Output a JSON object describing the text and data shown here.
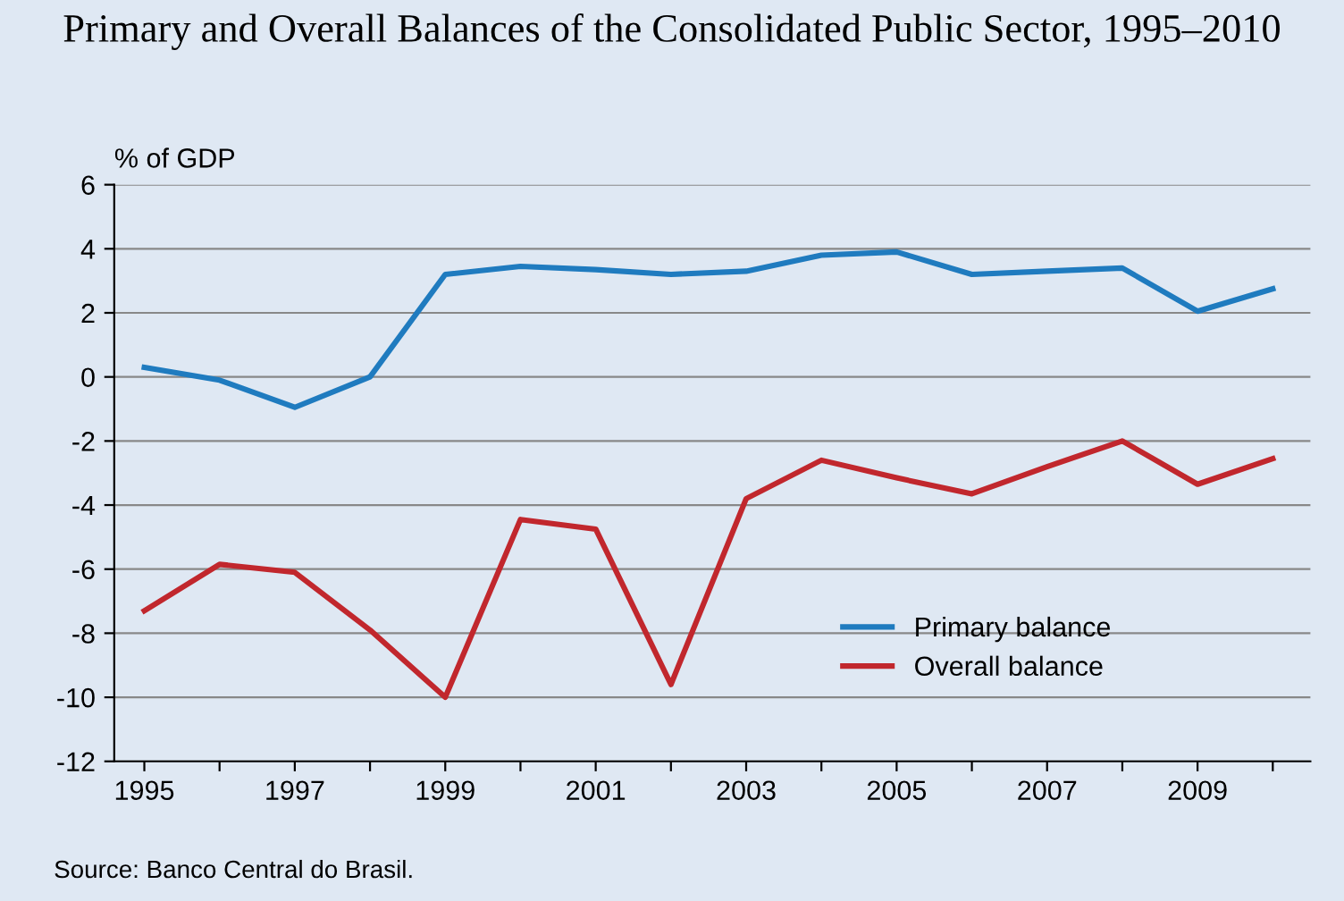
{
  "chart_data": {
    "type": "line",
    "title": "Primary and Overall Balances of the Consolidated Public Sector, 1995–2010",
    "ylabel": "% of GDP",
    "x": [
      1995,
      1996,
      1997,
      1998,
      1999,
      2000,
      2001,
      2002,
      2003,
      2004,
      2005,
      2006,
      2007,
      2008,
      2009,
      2010
    ],
    "series": [
      {
        "name": "Primary balance",
        "color": "#1f7bbf",
        "values": [
          0.3,
          -0.1,
          -0.95,
          0.0,
          3.2,
          3.45,
          3.35,
          3.2,
          3.3,
          3.8,
          3.9,
          3.2,
          3.3,
          3.4,
          2.05,
          2.75
        ]
      },
      {
        "name": "Overall balance",
        "color": "#c1272d",
        "values": [
          -7.3,
          -5.85,
          -6.1,
          -7.9,
          -10.0,
          -4.45,
          -4.75,
          -9.6,
          -3.8,
          -2.6,
          -3.15,
          -3.65,
          -2.8,
          -2.0,
          -3.35,
          -2.55
        ]
      }
    ],
    "xlim": [
      1994.6,
      2010.5
    ],
    "xticks": [
      1995,
      {
        "value": 1996,
        "label": null
      },
      1997,
      {
        "value": 1998,
        "label": null
      },
      1999,
      {
        "value": 2000,
        "label": null
      },
      2001,
      {
        "value": 2002,
        "label": null
      },
      2003,
      {
        "value": 2004,
        "label": null
      },
      2005,
      {
        "value": 2006,
        "label": null
      },
      2007,
      {
        "value": 2008,
        "label": null
      },
      2009,
      {
        "value": 2010,
        "label": null
      }
    ],
    "ylim": [
      -12,
      6
    ],
    "yticks": [
      -12,
      -10,
      -8,
      -6,
      -4,
      -2,
      0,
      2,
      4,
      6
    ],
    "grid": "y",
    "legend": "bottom right",
    "marker": "none",
    "line_style": "solid",
    "annotations": [
      "Source: Banco Central do Brasil."
    ]
  }
}
